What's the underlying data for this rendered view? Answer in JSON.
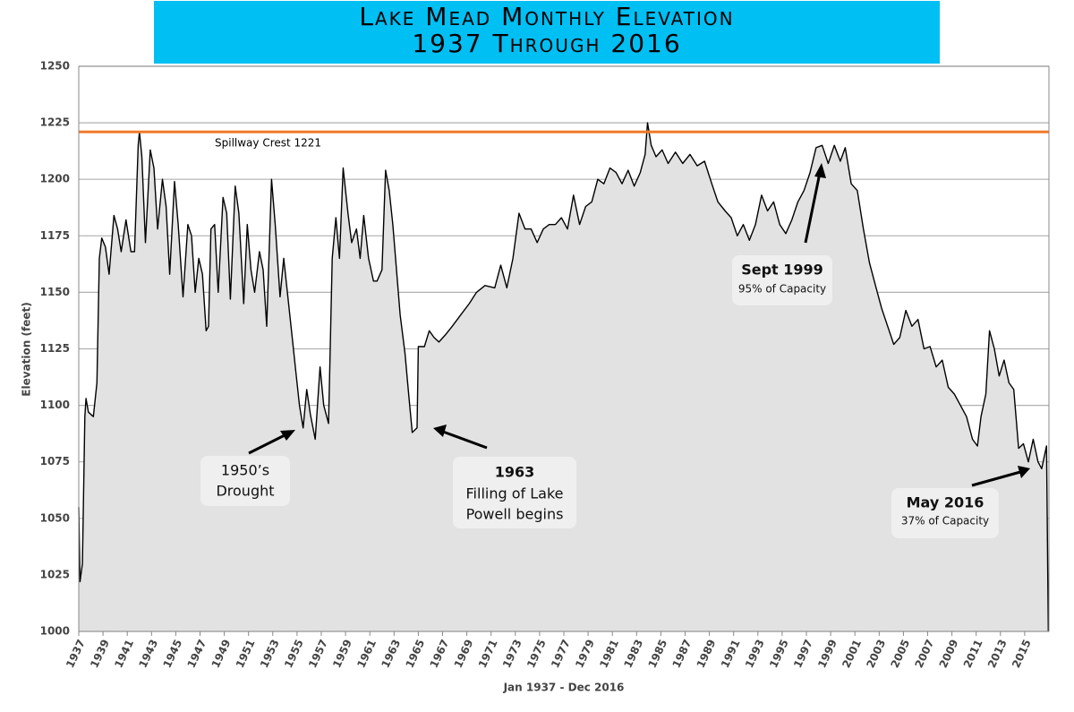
{
  "chart_data": {
    "type": "area",
    "title": "Lake Mead Monthly Elevation",
    "subtitle": "1937 Through 2016",
    "y_label": "Elevation (feet)",
    "x_label": "Jan 1937 - Dec 2016",
    "color": "#000000",
    "fill": "#e2e2e2",
    "title_background": "#00bff3",
    "grid": true,
    "xlim": [
      1937,
      2017
    ],
    "ylim": [
      1000,
      1250
    ],
    "xticks": [
      1937,
      1939,
      1941,
      1943,
      1945,
      1947,
      1949,
      1951,
      1953,
      1955,
      1957,
      1959,
      1961,
      1963,
      1965,
      1967,
      1969,
      1971,
      1973,
      1975,
      1977,
      1979,
      1981,
      1983,
      1985,
      1987,
      1989,
      1991,
      1993,
      1995,
      1997,
      1999,
      2001,
      2003,
      2005,
      2007,
      2009,
      2011,
      2013,
      2015
    ],
    "yticks": [
      1000,
      1025,
      1050,
      1075,
      1100,
      1125,
      1150,
      1175,
      1200,
      1225,
      1250
    ],
    "reference_line": {
      "value": 1221,
      "label": "Spillway Crest 1221",
      "color": "#f07a2a"
    },
    "annotations": [
      {
        "lines": [
          "1950’s",
          "Drought"
        ]
      },
      {
        "lines": [
          "1963",
          "Filling of Lake",
          "Powell begins"
        ]
      },
      {
        "lines": [
          "Sept 1999",
          "95% of Capacity"
        ]
      },
      {
        "lines": [
          "May 2016",
          "37% of Capacity"
        ]
      }
    ],
    "x": [
      1937.0,
      1937.1,
      1937.3,
      1937.5,
      1937.6,
      1937.8,
      1938.2,
      1938.5,
      1938.7,
      1938.9,
      1939.2,
      1939.5,
      1939.9,
      1940.2,
      1940.5,
      1940.9,
      1941.3,
      1941.6,
      1941.9,
      1942.0,
      1942.2,
      1942.5,
      1942.9,
      1943.2,
      1943.5,
      1943.9,
      1944.2,
      1944.5,
      1944.9,
      1945.2,
      1945.6,
      1946.0,
      1946.3,
      1946.6,
      1946.9,
      1947.2,
      1947.5,
      1947.7,
      1947.9,
      1948.2,
      1948.5,
      1948.9,
      1949.2,
      1949.5,
      1949.9,
      1950.2,
      1950.6,
      1950.9,
      1951.2,
      1951.5,
      1951.9,
      1952.2,
      1952.5,
      1952.9,
      1953.2,
      1953.6,
      1953.9,
      1954.2,
      1954.6,
      1954.9,
      1955.2,
      1955.5,
      1955.8,
      1956.1,
      1956.5,
      1956.9,
      1957.2,
      1957.6,
      1957.9,
      1958.2,
      1958.5,
      1958.8,
      1959.2,
      1959.5,
      1959.9,
      1960.2,
      1960.5,
      1960.9,
      1961.3,
      1961.6,
      1962.0,
      1962.3,
      1962.6,
      1962.9,
      1963.2,
      1963.5,
      1963.9,
      1964.2,
      1964.5,
      1964.9,
      1965.0,
      1965.5,
      1965.9,
      1966.3,
      1966.7,
      1967.2,
      1967.8,
      1968.5,
      1969.2,
      1969.8,
      1970.5,
      1971.3,
      1971.8,
      1972.3,
      1972.8,
      1973.3,
      1973.8,
      1974.3,
      1974.8,
      1975.3,
      1975.8,
      1976.3,
      1976.8,
      1977.3,
      1977.8,
      1978.3,
      1978.8,
      1979.3,
      1979.8,
      1980.3,
      1980.8,
      1981.3,
      1981.8,
      1982.3,
      1982.8,
      1983.3,
      1983.7,
      1983.9,
      1984.2,
      1984.6,
      1985.1,
      1985.6,
      1986.2,
      1986.8,
      1987.4,
      1988.0,
      1988.6,
      1989.2,
      1989.7,
      1990.3,
      1990.8,
      1991.3,
      1991.8,
      1992.3,
      1992.8,
      1993.3,
      1993.8,
      1994.3,
      1994.8,
      1995.3,
      1995.8,
      1996.3,
      1996.8,
      1997.3,
      1997.8,
      1998.3,
      1998.8,
      1999.3,
      1999.8,
      2000.2,
      2000.7,
      2001.2,
      2001.7,
      2002.2,
      2002.7,
      2003.2,
      2003.7,
      2004.2,
      2004.7,
      2005.2,
      2005.7,
      2006.2,
      2006.7,
      2007.2,
      2007.7,
      2008.2,
      2008.7,
      2009.2,
      2009.7,
      2010.2,
      2010.7,
      2011.1,
      2011.4,
      2011.8,
      2012.1,
      2012.5,
      2012.9,
      2013.3,
      2013.7,
      2014.1,
      2014.5,
      2014.9,
      2015.3,
      2015.7,
      2016.1,
      2016.4,
      2016.8,
      2016.95
    ],
    "values": [
      1055,
      1022,
      1030,
      1095,
      1103,
      1097,
      1095,
      1110,
      1165,
      1174,
      1170,
      1158,
      1184,
      1178,
      1168,
      1182,
      1168,
      1168,
      1215,
      1221,
      1210,
      1172,
      1213,
      1205,
      1178,
      1200,
      1188,
      1158,
      1199,
      1180,
      1148,
      1180,
      1175,
      1150,
      1165,
      1158,
      1133,
      1135,
      1178,
      1180,
      1150,
      1192,
      1185,
      1147,
      1197,
      1185,
      1145,
      1180,
      1160,
      1150,
      1168,
      1160,
      1135,
      1200,
      1180,
      1148,
      1165,
      1150,
      1130,
      1115,
      1100,
      1090,
      1107,
      1096,
      1085,
      1117,
      1100,
      1092,
      1165,
      1183,
      1165,
      1205,
      1185,
      1172,
      1178,
      1165,
      1184,
      1165,
      1155,
      1155,
      1160,
      1204,
      1195,
      1180,
      1160,
      1140,
      1123,
      1105,
      1088,
      1090,
      1126,
      1126,
      1133,
      1130,
      1128,
      1131,
      1135,
      1140,
      1145,
      1150,
      1153,
      1152,
      1162,
      1152,
      1165,
      1185,
      1178,
      1178,
      1172,
      1178,
      1180,
      1180,
      1183,
      1178,
      1193,
      1180,
      1188,
      1190,
      1200,
      1198,
      1205,
      1203,
      1198,
      1204,
      1197,
      1203,
      1211,
      1225,
      1215,
      1210,
      1213,
      1207,
      1212,
      1207,
      1211,
      1206,
      1208,
      1198,
      1190,
      1186,
      1183,
      1175,
      1180,
      1173,
      1180,
      1193,
      1186,
      1190,
      1180,
      1176,
      1182,
      1190,
      1195,
      1203,
      1214,
      1215,
      1207,
      1215,
      1208,
      1214,
      1198,
      1195,
      1178,
      1163,
      1153,
      1143,
      1135,
      1127,
      1130,
      1142,
      1135,
      1138,
      1125,
      1126,
      1117,
      1120,
      1108,
      1105,
      1100,
      1095,
      1085,
      1082,
      1095,
      1105,
      1133,
      1125,
      1113,
      1120,
      1110,
      1107,
      1081,
      1083,
      1075,
      1085,
      1075,
      1072,
      1082,
      1000
    ]
  }
}
